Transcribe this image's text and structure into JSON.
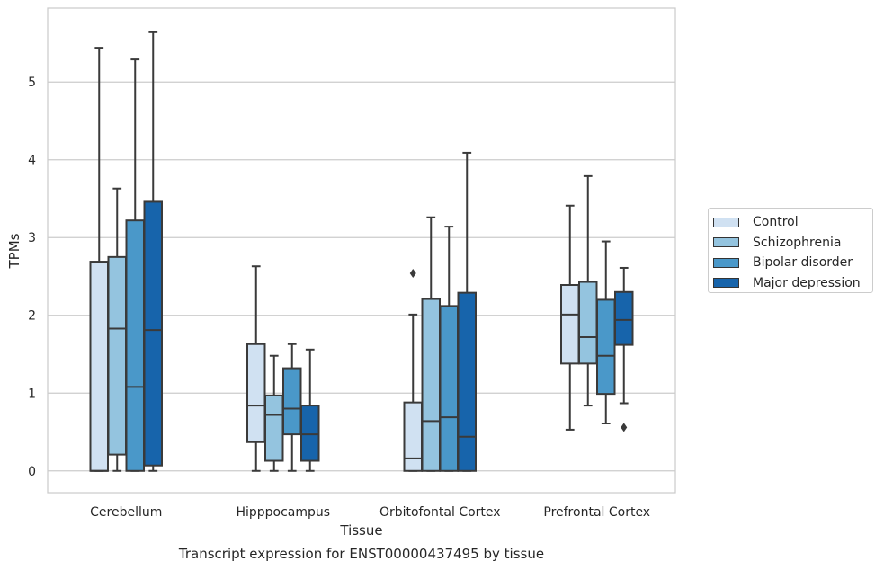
{
  "chart_data": {
    "type": "box",
    "title": "Transcript expression for ENST00000437495 by tissue",
    "xlabel": "Tissue",
    "ylabel": "TPMs",
    "ylim": [
      -0.28,
      5.95
    ],
    "yticks": [
      0,
      1,
      2,
      3,
      4,
      5
    ],
    "grid": "horizontal",
    "legend_position": "right",
    "categories": [
      "Cerebellum",
      "Hipppocampus",
      "Orbitofontal Cortex",
      "Prefrontal Cortex"
    ],
    "series": [
      {
        "name": "Control",
        "color": "#d0e1f2",
        "boxes": [
          {
            "whisker_low": 0,
            "q1": 0,
            "median": 0,
            "q3": 2.69,
            "whisker_high": 5.44,
            "outliers": []
          },
          {
            "whisker_low": 0,
            "q1": 0.37,
            "median": 0.84,
            "q3": 1.63,
            "whisker_high": 2.63,
            "outliers": []
          },
          {
            "whisker_low": 0,
            "q1": 0,
            "median": 0.16,
            "q3": 0.88,
            "whisker_high": 2.01,
            "outliers": [
              2.54
            ]
          },
          {
            "whisker_low": 0.53,
            "q1": 1.38,
            "median": 2.01,
            "q3": 2.39,
            "whisker_high": 3.41,
            "outliers": []
          }
        ]
      },
      {
        "name": "Schizophrenia",
        "color": "#94c4df",
        "boxes": [
          {
            "whisker_low": 0,
            "q1": 0.21,
            "median": 1.83,
            "q3": 2.75,
            "whisker_high": 3.63,
            "outliers": []
          },
          {
            "whisker_low": 0,
            "q1": 0.13,
            "median": 0.72,
            "q3": 0.97,
            "whisker_high": 1.48,
            "outliers": []
          },
          {
            "whisker_low": 0,
            "q1": 0,
            "median": 0.64,
            "q3": 2.21,
            "whisker_high": 3.26,
            "outliers": []
          },
          {
            "whisker_low": 0.84,
            "q1": 1.38,
            "median": 1.72,
            "q3": 2.43,
            "whisker_high": 3.79,
            "outliers": []
          }
        ]
      },
      {
        "name": "Bipolar disorder",
        "color": "#4a98c9",
        "boxes": [
          {
            "whisker_low": 0,
            "q1": 0,
            "median": 1.08,
            "q3": 3.22,
            "whisker_high": 5.29,
            "outliers": []
          },
          {
            "whisker_low": 0,
            "q1": 0.47,
            "median": 0.8,
            "q3": 1.32,
            "whisker_high": 1.63,
            "outliers": []
          },
          {
            "whisker_low": 0,
            "q1": 0,
            "median": 0.69,
            "q3": 2.12,
            "whisker_high": 3.14,
            "outliers": []
          },
          {
            "whisker_low": 0.61,
            "q1": 0.99,
            "median": 1.48,
            "q3": 2.2,
            "whisker_high": 2.95,
            "outliers": []
          }
        ]
      },
      {
        "name": "Major depression",
        "color": "#1764ab",
        "boxes": [
          {
            "whisker_low": 0,
            "q1": 0.07,
            "median": 1.81,
            "q3": 3.46,
            "whisker_high": 5.64,
            "outliers": []
          },
          {
            "whisker_low": 0,
            "q1": 0.13,
            "median": 0.47,
            "q3": 0.84,
            "whisker_high": 1.56,
            "outliers": []
          },
          {
            "whisker_low": 0,
            "q1": 0,
            "median": 0.44,
            "q3": 2.29,
            "whisker_high": 4.09,
            "outliers": []
          },
          {
            "whisker_low": 0.87,
            "q1": 1.62,
            "median": 1.94,
            "q3": 2.3,
            "whisker_high": 2.61,
            "outliers": [
              0.56
            ]
          }
        ]
      }
    ]
  }
}
